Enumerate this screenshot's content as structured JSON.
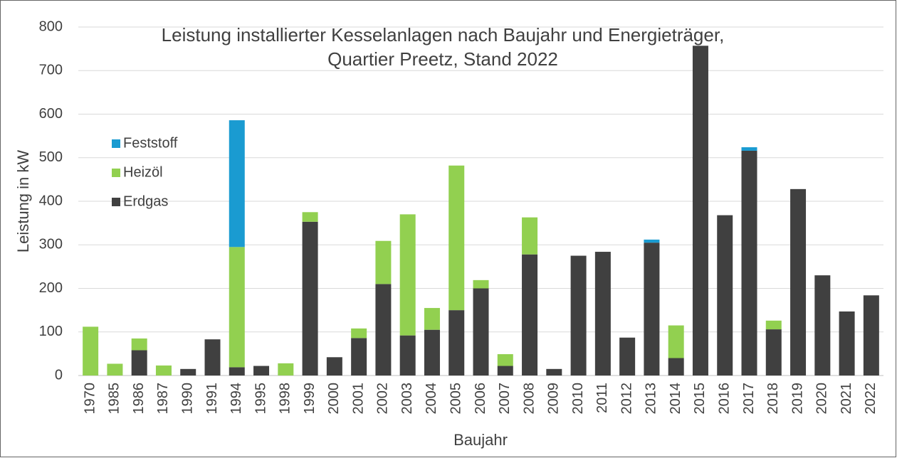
{
  "chart_data": {
    "type": "stacked_bar",
    "title": [
      "Leistung installierter Kesselanlagen nach Baujahr und Energieträger,",
      "Quartier Preetz, Stand 2022"
    ],
    "x_label": "Baujahr",
    "y_label": "Leistung in kW",
    "categories": [
      "1970",
      "1985",
      "1986",
      "1987",
      "1990",
      "1991",
      "1994",
      "1995",
      "1998",
      "1999",
      "2000",
      "2001",
      "2002",
      "2003",
      "2004",
      "2005",
      "2006",
      "2007",
      "2008",
      "2009",
      "2010",
      "2011",
      "2012",
      "2013",
      "2014",
      "2015",
      "2016",
      "2017",
      "2018",
      "2019",
      "2020",
      "2021",
      "2022"
    ],
    "series": [
      {
        "name": "Erdgas",
        "color": "#404040",
        "values": [
          0,
          0,
          58,
          0,
          15,
          83,
          19,
          22,
          0,
          353,
          42,
          86,
          210,
          92,
          105,
          150,
          200,
          22,
          278,
          15,
          275,
          284,
          87,
          305,
          40,
          757,
          368,
          516,
          106,
          428,
          230,
          147,
          184
        ]
      },
      {
        "name": "Heizöl",
        "color": "#92d050",
        "values": [
          112,
          27,
          27,
          23,
          0,
          0,
          276,
          0,
          28,
          22,
          0,
          22,
          99,
          278,
          50,
          332,
          19,
          27,
          85,
          0,
          0,
          0,
          0,
          0,
          75,
          0,
          0,
          0,
          20,
          0,
          0,
          0,
          0
        ]
      },
      {
        "name": "Feststoff",
        "color": "#1a9bd1",
        "values": [
          0,
          0,
          0,
          0,
          0,
          0,
          291,
          0,
          0,
          0,
          0,
          0,
          0,
          0,
          0,
          0,
          0,
          0,
          0,
          0,
          0,
          0,
          0,
          7,
          0,
          0,
          0,
          8,
          0,
          0,
          0,
          0,
          0
        ]
      }
    ],
    "ylim": [
      0,
      800
    ],
    "yticks": [
      0,
      100,
      200,
      300,
      400,
      500,
      600,
      700,
      800
    ],
    "grid": true
  }
}
